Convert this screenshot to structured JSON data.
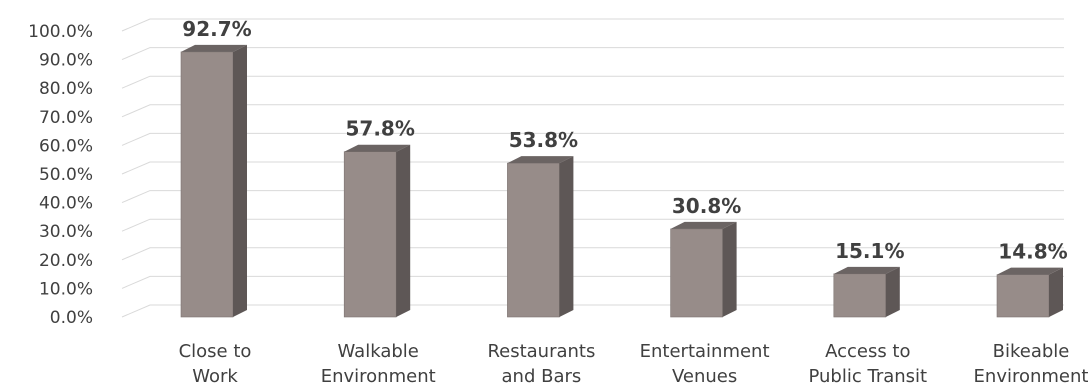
{
  "chart_data": {
    "type": "bar",
    "style": "3d-column",
    "categories": [
      [
        "Close to",
        "Work"
      ],
      [
        "Walkable",
        "Environment"
      ],
      [
        "Restaurants",
        "and Bars"
      ],
      [
        "Entertainment",
        "Venues"
      ],
      [
        "Access to",
        "Public Transit"
      ],
      [
        "Bikeable",
        "Environment"
      ]
    ],
    "values": [
      92.7,
      57.8,
      53.8,
      30.8,
      15.1,
      14.8
    ],
    "data_labels": [
      "92.7%",
      "57.8%",
      "53.8%",
      "30.8%",
      "15.1%",
      "14.8%"
    ],
    "y_ticks": [
      "0.0%",
      "10.0%",
      "20.0%",
      "30.0%",
      "40.0%",
      "50.0%",
      "60.0%",
      "70.0%",
      "80.0%",
      "90.0%",
      "100.0%"
    ],
    "ylim": [
      0,
      100
    ],
    "grid": true,
    "legend": "none",
    "title": "",
    "xlabel": "",
    "ylabel": "",
    "colors": {
      "bar_front": "#978c89",
      "bar_side": "#5e5756",
      "bar_top": "#6b6463",
      "grid": "#d9d9d9",
      "text": "#404040"
    }
  }
}
